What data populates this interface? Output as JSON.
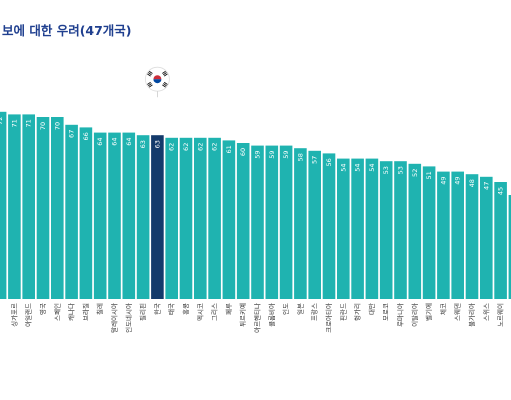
{
  "chart_data": {
    "type": "bar",
    "title": "보에 대한 우려(47개국)",
    "highlight_category": "한국",
    "highlight_icon": "korea-flag-icon",
    "colors": {
      "bar": "#1fb3b0",
      "highlight": "#143a6b",
      "title": "#1f3f8f"
    },
    "ylim": [
      0,
      75
    ],
    "categories": [
      "",
      "싱가포르",
      "아일랜드",
      "영국",
      "스페인",
      "캐나다",
      "브라질",
      "칠레",
      "말레이시아",
      "인도네시아",
      "필리핀",
      "한국",
      "태국",
      "홍콩",
      "멕시코",
      "그리스",
      "페루",
      "튀르키예",
      "아르헨티나",
      "콜롬비아",
      "인도",
      "일본",
      "프랑스",
      "크로아티아",
      "핀란드",
      "헝가리",
      "대만",
      "모로코",
      "루마니아",
      "이탈리아",
      "벨기에",
      "체코",
      "스웨덴",
      "불가리아",
      "스위스",
      "노르웨이",
      "덴마크"
    ],
    "values": [
      72,
      71,
      71,
      70,
      70,
      67,
      66,
      64,
      64,
      64,
      63,
      63,
      62,
      62,
      62,
      62,
      61,
      60,
      59,
      59,
      59,
      58,
      57,
      56,
      54,
      54,
      54,
      53,
      53,
      52,
      51,
      49,
      49,
      48,
      47,
      45,
      40
    ]
  }
}
